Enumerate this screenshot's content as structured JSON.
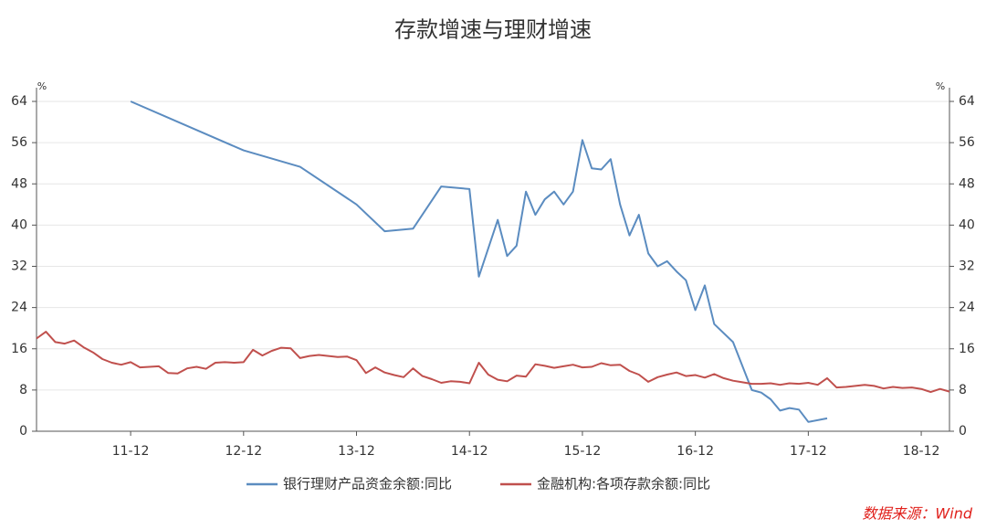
{
  "chart_data": {
    "type": "line",
    "title": "存款增速与理财增速",
    "y_unit": "%",
    "y2_unit": "%",
    "source": "数据来源：Wind",
    "xlim": [
      "11-02",
      "19-03"
    ],
    "xticks": [
      "11-12",
      "12-12",
      "13-12",
      "14-12",
      "15-12",
      "16-12",
      "17-12",
      "18-12"
    ],
    "ylim": [
      0,
      64
    ],
    "yticks": [
      0,
      8,
      16,
      24,
      32,
      40,
      48,
      56,
      64
    ],
    "y2lim": [
      0,
      64
    ],
    "y2ticks": [
      0,
      8,
      16,
      24,
      32,
      40,
      48,
      56,
      64
    ],
    "grid": true,
    "series": [
      {
        "name": "银行理财产品资金余额:同比",
        "color": "#5b8cc0",
        "x": [
          "11-12",
          "12-12",
          "13-06",
          "13-12",
          "14-03",
          "14-06",
          "14-09",
          "14-12",
          "15-01",
          "15-03",
          "15-04",
          "15-05",
          "15-06",
          "15-07",
          "15-08",
          "15-09",
          "15-10",
          "15-11",
          "15-12",
          "16-01",
          "16-02",
          "16-03",
          "16-04",
          "16-05",
          "16-06",
          "16-07",
          "16-08",
          "16-09",
          "16-10",
          "16-11",
          "16-12",
          "17-01",
          "17-02",
          "17-04",
          "17-06",
          "17-07",
          "17-08",
          "17-09",
          "17-10",
          "17-11",
          "17-12",
          "18-02"
        ],
        "values": [
          64,
          54.5,
          51.3,
          44,
          38.8,
          39.3,
          47.5,
          47,
          30,
          41,
          34,
          36,
          46.5,
          42,
          45,
          46.5,
          44,
          46.5,
          56.5,
          51,
          50.8,
          52.8,
          44,
          38,
          42,
          34.5,
          32,
          33,
          31,
          29.3,
          23.5,
          28.3,
          20.8,
          17.3,
          8,
          7.5,
          6.2,
          4,
          4.5,
          4.2,
          1.8,
          2.5
        ]
      },
      {
        "name": "金融机构:各项存款余额:同比",
        "color": "#c0504d",
        "axis": "y2",
        "x": [
          "11-02",
          "11-03",
          "11-04",
          "11-05",
          "11-06",
          "11-07",
          "11-08",
          "11-09",
          "11-10",
          "11-11",
          "11-12",
          "12-01",
          "12-02",
          "12-03",
          "12-04",
          "12-05",
          "12-06",
          "12-07",
          "12-08",
          "12-09",
          "12-10",
          "12-11",
          "12-12",
          "13-01",
          "13-02",
          "13-03",
          "13-04",
          "13-05",
          "13-06",
          "13-07",
          "13-08",
          "13-09",
          "13-10",
          "13-11",
          "13-12",
          "14-01",
          "14-02",
          "14-03",
          "14-04",
          "14-05",
          "14-06",
          "14-07",
          "14-08",
          "14-09",
          "14-10",
          "14-11",
          "14-12",
          "15-01",
          "15-02",
          "15-03",
          "15-04",
          "15-05",
          "15-06",
          "15-07",
          "15-08",
          "15-09",
          "15-10",
          "15-11",
          "15-12",
          "16-01",
          "16-02",
          "16-03",
          "16-04",
          "16-05",
          "16-06",
          "16-07",
          "16-08",
          "16-09",
          "16-10",
          "16-11",
          "16-12",
          "17-01",
          "17-02",
          "17-03",
          "17-04",
          "17-05",
          "17-06",
          "17-07",
          "17-08",
          "17-09",
          "17-10",
          "17-11",
          "17-12",
          "18-01",
          "18-02",
          "18-03",
          "18-04",
          "18-05",
          "18-06",
          "18-07",
          "18-08",
          "18-09",
          "18-10",
          "18-11",
          "18-12",
          "19-01",
          "19-02",
          "19-03"
        ],
        "values": [
          18,
          19.3,
          17.3,
          17,
          17.6,
          16.3,
          15.3,
          14,
          13.3,
          12.9,
          13.4,
          12.4,
          12.5,
          12.6,
          11.3,
          11.2,
          12.2,
          12.5,
          12.1,
          13.3,
          13.4,
          13.3,
          13.4,
          15.8,
          14.7,
          15.6,
          16.2,
          16.1,
          14.2,
          14.6,
          14.8,
          14.6,
          14.4,
          14.5,
          13.8,
          11.3,
          12.4,
          11.4,
          10.9,
          10.5,
          12.2,
          10.7,
          10.1,
          9.4,
          9.7,
          9.6,
          9.3,
          13.3,
          11,
          10,
          9.7,
          10.8,
          10.6,
          13,
          12.7,
          12.3,
          12.6,
          12.9,
          12.4,
          12.5,
          13.2,
          12.8,
          12.9,
          11.7,
          11,
          9.6,
          10.5,
          11,
          11.4,
          10.7,
          10.9,
          10.4,
          11.1,
          10.3,
          9.8,
          9.5,
          9.2,
          9.2,
          9.3,
          9,
          9.3,
          9.2,
          9.4,
          9,
          10.3,
          8.5,
          8.6,
          8.8,
          9,
          8.8,
          8.3,
          8.6,
          8.4,
          8.5,
          8.2,
          7.6,
          8.2,
          7.7
        ]
      }
    ]
  }
}
